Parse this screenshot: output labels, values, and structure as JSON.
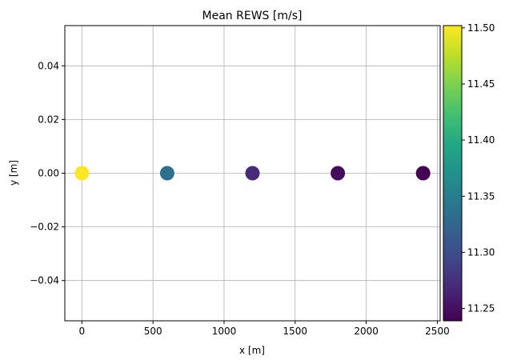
{
  "chart_data": {
    "type": "scatter",
    "title": "Mean REWS [m/s]",
    "xlabel": "x [m]",
    "ylabel": "y [m]",
    "xlim": [
      -120,
      2520
    ],
    "ylim": [
      -0.055,
      0.055
    ],
    "grid": true,
    "x_ticks": [
      0,
      500,
      1000,
      1500,
      2000,
      2500
    ],
    "x_tick_labels": [
      "0",
      "500",
      "1000",
      "1500",
      "2000",
      "2500"
    ],
    "y_ticks": [
      0.04,
      0.02,
      0.0,
      -0.02,
      -0.04
    ],
    "y_tick_labels": [
      "0.04",
      "0.02",
      "0.00",
      "−0.02",
      "−0.04"
    ],
    "points": [
      {
        "x": 0,
        "y": 0,
        "value": 11.502
      },
      {
        "x": 600,
        "y": 0,
        "value": 11.336
      },
      {
        "x": 1200,
        "y": 0,
        "value": 11.27
      },
      {
        "x": 1800,
        "y": 0,
        "value": 11.247
      },
      {
        "x": 2400,
        "y": 0,
        "value": 11.239
      }
    ],
    "colorbar": {
      "colormap": "viridis",
      "range": [
        11.239,
        11.502
      ],
      "ticks": [
        11.25,
        11.3,
        11.35,
        11.4,
        11.45,
        11.5
      ],
      "tick_labels": [
        "11.25",
        "11.30",
        "11.35",
        "11.40",
        "11.45",
        "11.50"
      ]
    }
  }
}
